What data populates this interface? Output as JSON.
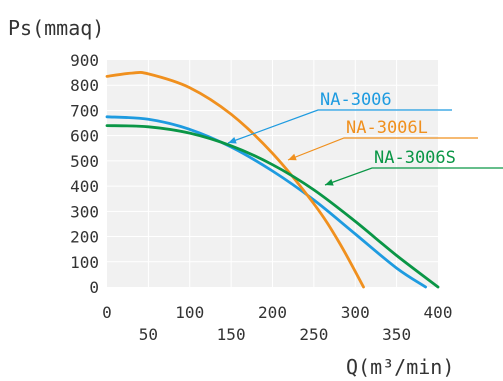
{
  "chart_data": {
    "type": "line",
    "title": "",
    "ylabel": "Ps(mmaq)",
    "xlabel": "Q(m³/min)",
    "xlim": [
      0,
      400
    ],
    "ylim": [
      0,
      900
    ],
    "grid": true,
    "legend": "callout labels",
    "x_ticks": [
      "0",
      "50",
      "100",
      "150",
      "200",
      "250",
      "300",
      "350",
      "400"
    ],
    "y_ticks": [
      "0",
      "100",
      "200",
      "300",
      "400",
      "500",
      "600",
      "700",
      "800",
      "900"
    ],
    "series": [
      {
        "name": "NA-3006",
        "color": "#1e9be0",
        "x": [
          0,
          50,
          100,
          150,
          200,
          250,
          300,
          350,
          385
        ],
        "y": [
          675,
          665,
          625,
          555,
          460,
          345,
          210,
          75,
          0
        ]
      },
      {
        "name": "NA-3006L",
        "color": "#f0901e",
        "x": [
          0,
          30,
          50,
          100,
          150,
          200,
          250,
          280,
          310
        ],
        "y": [
          835,
          848,
          845,
          790,
          685,
          530,
          330,
          180,
          0
        ]
      },
      {
        "name": "NA-3006S",
        "color": "#0a9646",
        "x": [
          0,
          50,
          100,
          150,
          200,
          250,
          300,
          350,
          400
        ],
        "y": [
          640,
          635,
          610,
          560,
          485,
          385,
          260,
          125,
          0
        ]
      }
    ]
  }
}
